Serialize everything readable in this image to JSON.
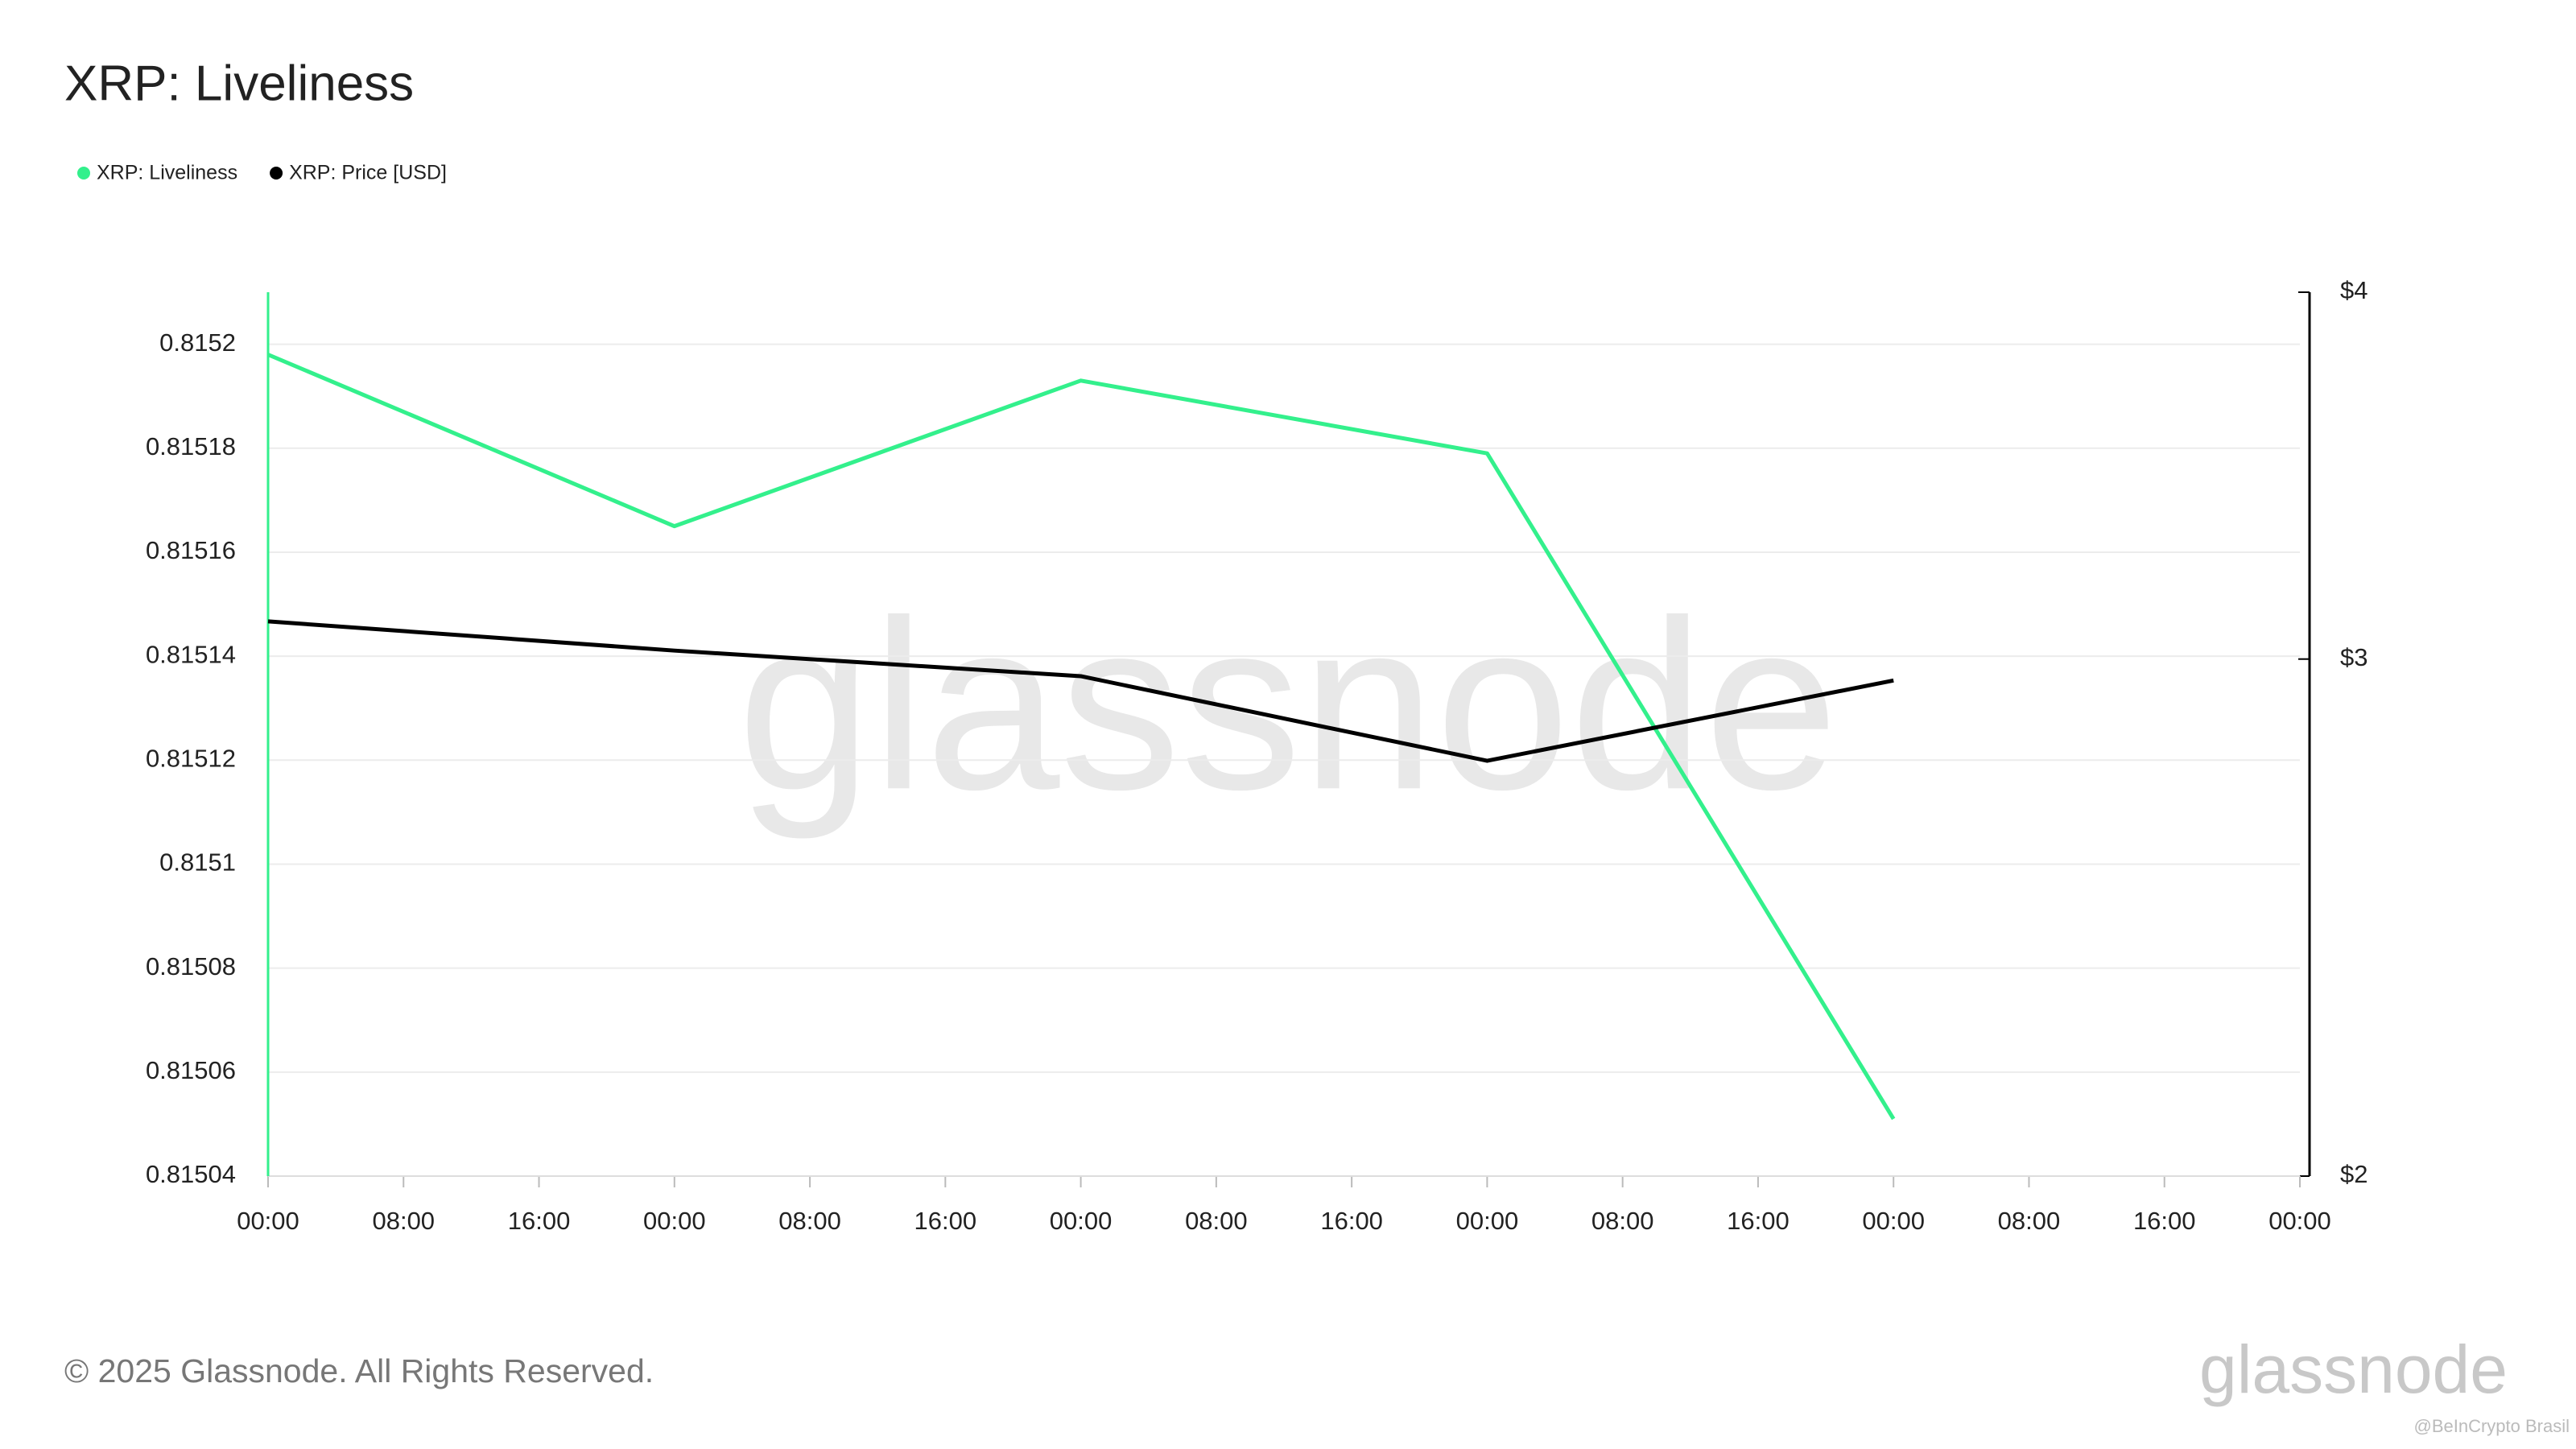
{
  "chart_data": {
    "type": "line",
    "title": "XRP: Liveliness",
    "x": [
      0,
      24,
      48,
      72,
      96
    ],
    "xlim": [
      0,
      120
    ],
    "xticks": [
      {
        "value": 0,
        "label": "00:00"
      },
      {
        "value": 8,
        "label": "08:00"
      },
      {
        "value": 16,
        "label": "16:00"
      },
      {
        "value": 24,
        "label": "00:00"
      },
      {
        "value": 32,
        "label": "08:00"
      },
      {
        "value": 40,
        "label": "16:00"
      },
      {
        "value": 48,
        "label": "00:00"
      },
      {
        "value": 56,
        "label": "08:00"
      },
      {
        "value": 64,
        "label": "16:00"
      },
      {
        "value": 72,
        "label": "00:00"
      },
      {
        "value": 80,
        "label": "08:00"
      },
      {
        "value": 88,
        "label": "16:00"
      },
      {
        "value": 96,
        "label": "00:00"
      },
      {
        "value": 104,
        "label": "08:00"
      },
      {
        "value": 112,
        "label": "16:00"
      },
      {
        "value": 120,
        "label": "00:00"
      }
    ],
    "ylim": [
      0.81504,
      0.81521
    ],
    "yticks": [
      0.81504,
      0.81506,
      0.81508,
      0.8151,
      0.81512,
      0.81514,
      0.81516,
      0.81518,
      0.8152
    ],
    "y2lim": [
      2,
      4
    ],
    "y2log": true,
    "y2ticks": [
      {
        "value": 2,
        "label": "$2"
      },
      {
        "value": 3,
        "label": "$3"
      },
      {
        "value": 4,
        "label": "$4"
      }
    ],
    "grid": true,
    "legend": "top-left",
    "series": [
      {
        "name": "XRP: Liveliness",
        "color": "#33f08c",
        "values": [
          0.815198,
          0.815165,
          0.815193,
          0.815179,
          0.815051
        ]
      },
      {
        "name": "XRP: Price [USD]",
        "color": "#000000",
        "axis": "y2",
        "values": [
          3.09,
          3.02,
          2.96,
          2.77,
          2.95
        ]
      }
    ],
    "watermark": "glassnode",
    "footer": "© 2025 Glassnode. All Rights Reserved.",
    "logo": "glassnode",
    "credit": "@BeInCrypto Brasil"
  }
}
